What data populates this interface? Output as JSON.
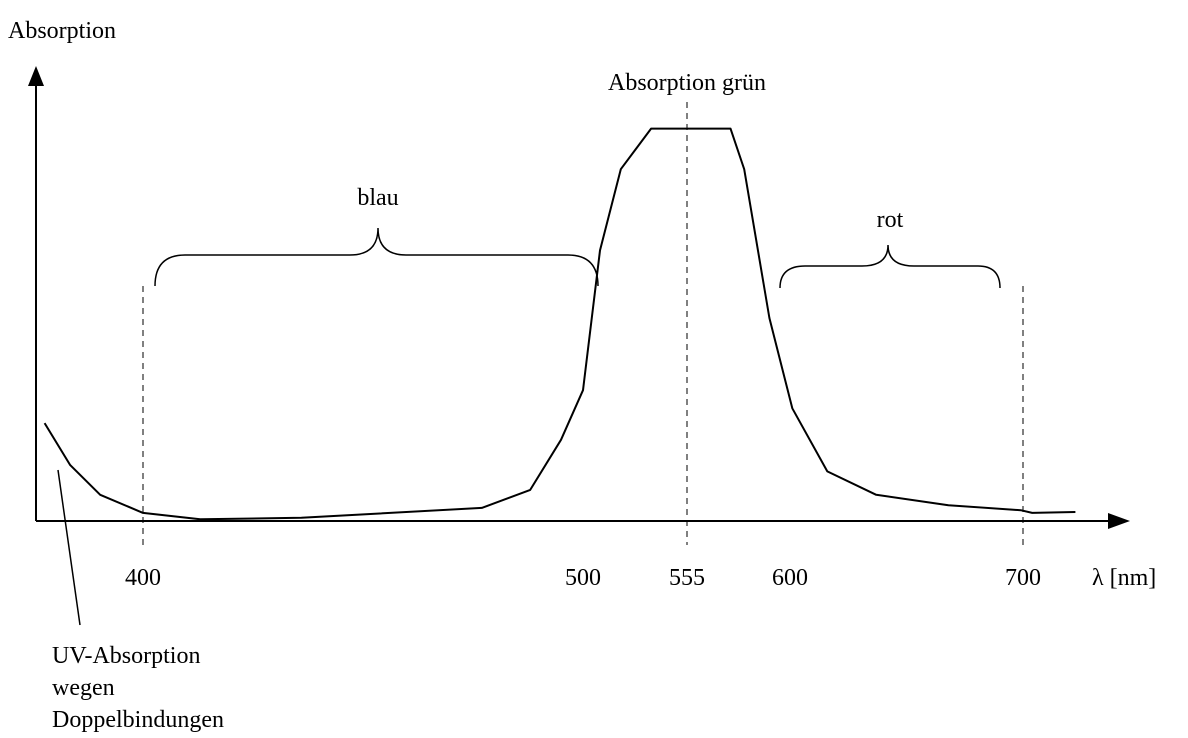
{
  "chart_data": {
    "type": "line",
    "ylabel": "Absorption",
    "xlabel": "λ [nm]",
    "x": [
      377,
      383,
      390,
      400,
      413,
      436,
      477,
      488,
      495,
      500,
      509,
      520,
      536,
      555,
      574,
      580,
      591,
      601,
      616,
      637,
      668,
      699,
      703,
      717
    ],
    "series": [
      {
        "color": "#000000",
        "values": [
          21.7,
          12.4,
          5.8,
          1.8,
          0.4,
          0.7,
          2.9,
          6.9,
          18,
          29,
          60,
          78,
          87,
          87,
          87,
          78,
          45,
          25,
          11,
          5.8,
          3.5,
          2.4,
          1.8,
          2.0
        ]
      }
    ],
    "xlim": [
      375,
      725
    ],
    "xticks": [
      400,
      500,
      555,
      600,
      700
    ],
    "ylim": [
      0,
      100
    ],
    "annotations": [
      "Absorption grün",
      "blau",
      "rot",
      "UV-Absorption",
      "wegen",
      "Doppelbindungen"
    ]
  }
}
